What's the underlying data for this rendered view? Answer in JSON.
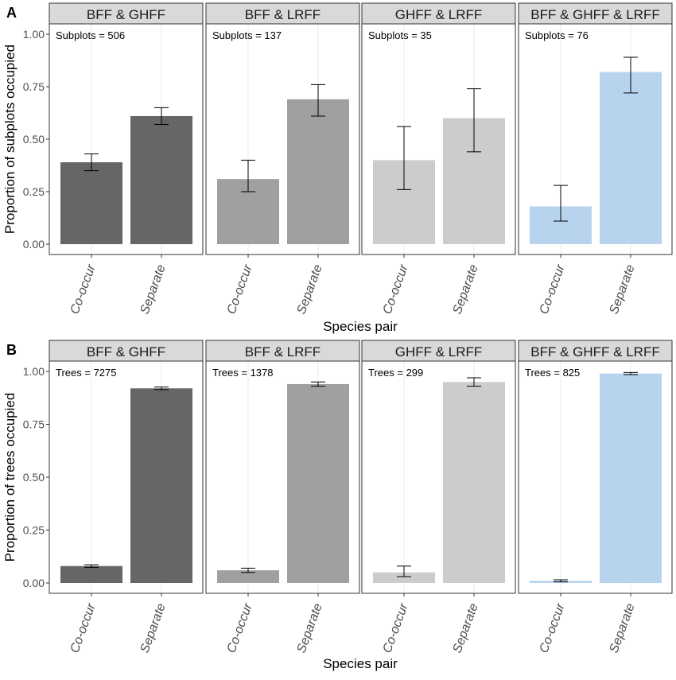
{
  "figure": {
    "panels": [
      {
        "letter": "A",
        "ylabel": "Proportion of subplots occupied",
        "xlabel": "Species pair",
        "annotation_prefix": "Subplots ="
      },
      {
        "letter": "B",
        "ylabel": "Proportion of trees occupied",
        "xlabel": "Species pair",
        "annotation_prefix": "Trees ="
      }
    ]
  },
  "chart_data": [
    {
      "type": "bar",
      "panel": "A",
      "ylabel": "Proportion of subplots occupied",
      "xlabel": "Species pair",
      "ylim": [
        0,
        1
      ],
      "yticks": [
        "0.00",
        "0.25",
        "0.50",
        "0.75",
        "1.00"
      ],
      "categories": [
        "Co-occur",
        "Separate"
      ],
      "grid": "vertical only",
      "facets": [
        {
          "name": "BFF & GHFF",
          "color": "#666666",
          "annotation": "Subplots =  506",
          "values": [
            0.39,
            0.61
          ],
          "error_low": [
            0.35,
            0.57
          ],
          "error_high": [
            0.43,
            0.65
          ]
        },
        {
          "name": "BFF & LRFF",
          "color": "#a0a0a0",
          "annotation": "Subplots =  137",
          "values": [
            0.31,
            0.69
          ],
          "error_low": [
            0.25,
            0.61
          ],
          "error_high": [
            0.4,
            0.76
          ]
        },
        {
          "name": "GHFF & LRFF",
          "color": "#cccccc",
          "annotation": "Subplots =  35",
          "values": [
            0.4,
            0.6
          ],
          "error_low": [
            0.26,
            0.44
          ],
          "error_high": [
            0.56,
            0.74
          ]
        },
        {
          "name": "BFF & GHFF & LRFF",
          "color": "#b8d3ee",
          "annotation": "Subplots =  76",
          "values": [
            0.18,
            0.82
          ],
          "error_low": [
            0.11,
            0.72
          ],
          "error_high": [
            0.28,
            0.89
          ]
        }
      ]
    },
    {
      "type": "bar",
      "panel": "B",
      "ylabel": "Proportion of trees occupied",
      "xlabel": "Species pair",
      "ylim": [
        0,
        1
      ],
      "yticks": [
        "0.00",
        "0.25",
        "0.50",
        "0.75",
        "1.00"
      ],
      "categories": [
        "Co-occur",
        "Separate"
      ],
      "grid": "vertical only",
      "facets": [
        {
          "name": "BFF & GHFF",
          "color": "#666666",
          "annotation": "Trees =  7275",
          "values": [
            0.08,
            0.92
          ],
          "error_low": [
            0.074,
            0.914
          ],
          "error_high": [
            0.086,
            0.926
          ]
        },
        {
          "name": "BFF & LRFF",
          "color": "#a0a0a0",
          "annotation": "Trees =  1378",
          "values": [
            0.06,
            0.94
          ],
          "error_low": [
            0.05,
            0.93
          ],
          "error_high": [
            0.07,
            0.95
          ]
        },
        {
          "name": "GHFF & LRFF",
          "color": "#cccccc",
          "annotation": "Trees =  299",
          "values": [
            0.05,
            0.95
          ],
          "error_low": [
            0.03,
            0.93
          ],
          "error_high": [
            0.08,
            0.97
          ]
        },
        {
          "name": "BFF & GHFF & LRFF",
          "color": "#b8d3ee",
          "annotation": "Trees =  825",
          "values": [
            0.01,
            0.99
          ],
          "error_low": [
            0.005,
            0.985
          ],
          "error_high": [
            0.015,
            0.995
          ]
        }
      ]
    }
  ]
}
